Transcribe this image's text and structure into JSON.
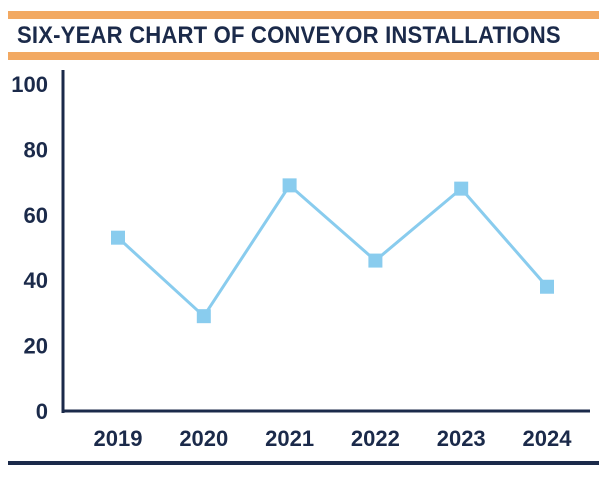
{
  "header": {
    "title": "SIX-YEAR CHART OF CONVEYOR INSTALLATIONS"
  },
  "colors": {
    "accent": "#F2A962",
    "text": "#1B2A4A",
    "series": "#89CCEE"
  },
  "chart_data": {
    "type": "line",
    "title": "SIX-YEAR CHART OF CONVEYOR INSTALLATIONS",
    "xlabel": "",
    "ylabel": "",
    "categories": [
      "2019",
      "2020",
      "2021",
      "2022",
      "2023",
      "2024"
    ],
    "series": [
      {
        "values": [
          53,
          29,
          69,
          46,
          68,
          38
        ]
      }
    ],
    "ylim": [
      0,
      100
    ],
    "yticks": [
      "0",
      "20",
      "40",
      "60",
      "80",
      "100"
    ],
    "grid": false,
    "legend": "none",
    "marker": "square"
  }
}
